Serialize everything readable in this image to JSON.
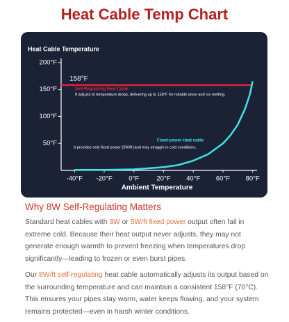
{
  "header": {
    "title": "Heat Cable Temp Chart"
  },
  "chart_data": {
    "type": "line",
    "ylabel": "Heat Cable Temperature",
    "xlabel": "Ambient Temperature",
    "xlim": [
      -49,
      82
    ],
    "ylim": [
      0,
      205
    ],
    "xticks": [
      {
        "value": -40,
        "label": "-40°F"
      },
      {
        "value": -20,
        "label": "-20°F"
      },
      {
        "value": 0,
        "label": "0°F"
      },
      {
        "value": 20,
        "label": "20°F"
      },
      {
        "value": 40,
        "label": "40°F"
      },
      {
        "value": 60,
        "label": "60°F"
      },
      {
        "value": 80,
        "label": "80°F"
      }
    ],
    "yticks": [
      {
        "value": 50,
        "label": "50°F"
      },
      {
        "value": 100,
        "label": "100°F"
      },
      {
        "value": 150,
        "label": "150°F"
      },
      {
        "value": 200,
        "label": "200°F"
      }
    ],
    "series": [
      {
        "name": "Self-Regulating Heat Cable",
        "note": "It adjusts to temperature drops, delivering up to 158°F for reliable snow and ice melting.",
        "color": "#e3213f",
        "x": [
          -49,
          80
        ],
        "values": [
          158,
          158
        ],
        "value_labels": [
          "158°F",
          null
        ]
      },
      {
        "name": "Fixed-power Heat cable",
        "note": "It provides only fixed power (5W/ft )and may struggle in cold conditions.",
        "color": "#3fe3e3",
        "x": [
          -40,
          -20,
          0,
          20,
          30,
          40,
          50,
          60,
          65,
          70,
          75,
          78,
          80
        ],
        "values": [
          1,
          1,
          2,
          6,
          10,
          18,
          30,
          50,
          65,
          85,
          115,
          140,
          165
        ]
      }
    ]
  },
  "section": {
    "heading": "Why 8W Self-Regulating Matters",
    "paragraphs": [
      [
        {
          "text": "Standard heat cables with "
        },
        {
          "text": "3W",
          "color": "#e0703a"
        },
        {
          "text": " or "
        },
        {
          "text": "5W/ft fixed power",
          "color": "#e0703a"
        },
        {
          "text": " output often fail in extreme cold. Because their heat output never adjusts, they may not generate enough warmth to prevent freezing when temperatures drop significantly—leading to frozen or even burst pipes."
        }
      ],
      [
        {
          "text": "Our "
        },
        {
          "text": "8W/ft self-regulating",
          "color": "#e0703a"
        },
        {
          "text": " heat cable automatically adjusts its output based on the surrounding temperature and can maintain a consistent 158°F (70°C). This ensures your pipes stay warm, water keeps flowing, and your system remains protected—even in harsh winter conditions."
        }
      ]
    ]
  }
}
